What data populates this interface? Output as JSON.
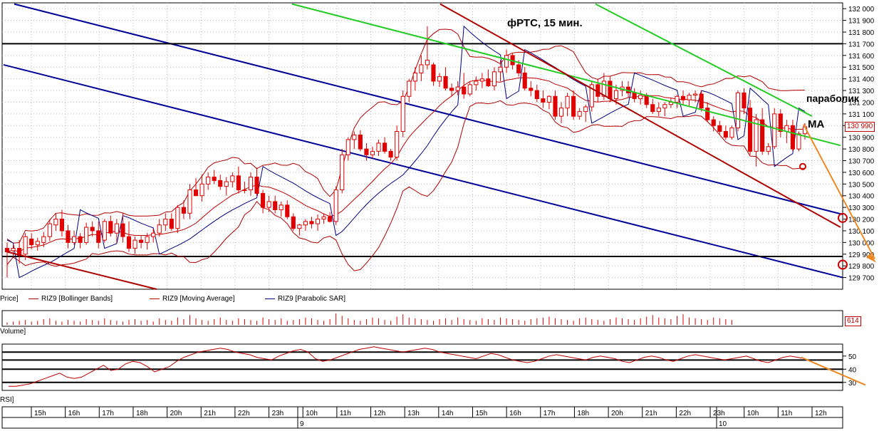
{
  "annotations": {
    "title": "фРТС,  15 мин.",
    "parabolic": "параболик",
    "ma": "MA"
  },
  "legend": {
    "price": "Price]",
    "bollinger": "RIZ9 [Bollinger Bands]",
    "moving_average": "RIZ9 [Moving Average]",
    "parabolic_sar": "RIZ9 [Parabolic SAR]"
  },
  "panes": {
    "volume_label": "Volume]",
    "rsi_label": "RSI]",
    "volume_last": "614",
    "last_price": "130 990"
  },
  "colors": {
    "bull_candle": "#ffffff",
    "bear_candle": "#e00000",
    "bollinger": "#b00000",
    "moving_average": "#c00000",
    "parabolic_sar": "#000080",
    "blue_channel": "#000099",
    "green_trend": "#22cc22",
    "red_trend": "#b00000",
    "orange_projection": "#ee8822",
    "level_line": "#000000"
  },
  "chart_data": {
    "type": "candlestick",
    "price_axis": {
      "ticks": [
        "132 000",
        "131 900",
        "131 800",
        "131 700",
        "131 600",
        "131 500",
        "131 400",
        "131 300",
        "131 200",
        "131 100",
        "131 000",
        "130 900",
        "130 800",
        "130 700",
        "130 600",
        "130 500",
        "130 400",
        "130 300",
        "130 200",
        "130 100",
        "130 000",
        "129 900",
        "129 800",
        "129 700"
      ],
      "range": [
        129600,
        132050
      ]
    },
    "rsi_axis": {
      "ticks": [
        "50",
        "40",
        "30"
      ],
      "range": [
        25,
        58
      ],
      "levels": [
        30,
        40,
        47,
        53
      ]
    },
    "time_axis": {
      "hours": [
        "15h",
        "16h",
        "17h",
        "18h",
        "20h",
        "21h",
        "22h",
        "23h",
        "10h",
        "11h",
        "12h",
        "13h",
        "14h",
        "15h",
        "16h",
        "17h",
        "18h",
        "20h",
        "21h",
        "22h",
        "23h",
        "10h",
        "11h",
        "12h"
      ],
      "days": [
        "9",
        "10"
      ]
    },
    "horizontal_levels": [
      131700,
      129880
    ],
    "candles": [
      [
        129950,
        130000,
        129700,
        129920
      ],
      [
        129930,
        129980,
        129880,
        129950
      ],
      [
        129950,
        130020,
        129820,
        129890
      ],
      [
        129900,
        130080,
        129850,
        130050
      ],
      [
        130030,
        130080,
        129940,
        129980
      ],
      [
        129980,
        130040,
        129930,
        130010
      ],
      [
        130000,
        130090,
        129960,
        130050
      ],
      [
        130050,
        130200,
        130010,
        130160
      ],
      [
        130150,
        130250,
        130100,
        130200
      ],
      [
        130200,
        130280,
        130050,
        130100
      ],
      [
        130100,
        130150,
        129950,
        130000
      ],
      [
        130000,
        130100,
        129980,
        130050
      ],
      [
        130050,
        130080,
        129950,
        130000
      ],
      [
        130000,
        130170,
        129980,
        130130
      ],
      [
        130130,
        130180,
        130050,
        130100
      ],
      [
        130100,
        130180,
        129950,
        130000
      ],
      [
        130020,
        130200,
        130000,
        130180
      ],
      [
        130180,
        130230,
        130050,
        130080
      ],
      [
        130080,
        130200,
        130000,
        130160
      ],
      [
        130160,
        130250,
        130000,
        130050
      ],
      [
        130050,
        130180,
        129920,
        129950
      ],
      [
        129950,
        130050,
        129900,
        130020
      ],
      [
        130020,
        130060,
        129950,
        130000
      ],
      [
        130000,
        130080,
        129940,
        130050
      ],
      [
        130050,
        130120,
        130000,
        130080
      ],
      [
        130080,
        130200,
        130050,
        130150
      ],
      [
        130150,
        130250,
        130100,
        130200
      ],
      [
        130200,
        130250,
        130100,
        130120
      ],
      [
        130120,
        130320,
        130080,
        130300
      ],
      [
        130300,
        130360,
        130200,
        130250
      ],
      [
        130250,
        130500,
        130200,
        130450
      ],
      [
        130450,
        130550,
        130400,
        130400
      ],
      [
        130400,
        130580,
        130350,
        130500
      ],
      [
        130500,
        130600,
        130450,
        130560
      ],
      [
        130560,
        130620,
        130500,
        130530
      ],
      [
        130530,
        130580,
        130450,
        130480
      ],
      [
        130480,
        130560,
        130400,
        130520
      ],
      [
        130520,
        130600,
        130470,
        130570
      ],
      [
        130570,
        130650,
        130420,
        130450
      ],
      [
        130450,
        130520,
        130420,
        130450
      ],
      [
        130450,
        130600,
        130400,
        130560
      ],
      [
        130560,
        130640,
        130400,
        130420
      ],
      [
        130420,
        130450,
        130250,
        130300
      ],
      [
        130300,
        130400,
        130260,
        130350
      ],
      [
        130350,
        130400,
        130250,
        130280
      ],
      [
        130280,
        130350,
        130220,
        130320
      ],
      [
        130320,
        130360,
        130200,
        130220
      ],
      [
        130220,
        130250,
        130100,
        130120
      ],
      [
        130120,
        130160,
        130060,
        130150
      ],
      [
        130150,
        130200,
        130100,
        130180
      ],
      [
        130180,
        130220,
        130120,
        130160
      ],
      [
        130160,
        130240,
        130100,
        130200
      ],
      [
        130200,
        130250,
        130160,
        130220
      ],
      [
        130220,
        130260,
        130170,
        130180
      ],
      [
        130180,
        130480,
        130150,
        130450
      ],
      [
        130450,
        130800,
        130420,
        130750
      ],
      [
        130750,
        130900,
        130700,
        130880
      ],
      [
        130880,
        130950,
        130800,
        130920
      ],
      [
        130920,
        130960,
        130780,
        130800
      ],
      [
        130800,
        130850,
        130700,
        130750
      ],
      [
        130750,
        130820,
        130720,
        130780
      ],
      [
        130780,
        130880,
        130740,
        130850
      ],
      [
        130850,
        130900,
        130760,
        130780
      ],
      [
        130780,
        130800,
        130700,
        130730
      ],
      [
        130730,
        131000,
        130700,
        130950
      ],
      [
        130950,
        131300,
        130900,
        131250
      ],
      [
        131250,
        131400,
        131200,
        131380
      ],
      [
        131380,
        131500,
        131300,
        131450
      ],
      [
        131450,
        131600,
        131380,
        131520
      ],
      [
        131520,
        131850,
        131480,
        131560
      ],
      [
        131520,
        131540,
        131340,
        131380
      ],
      [
        131380,
        131450,
        131330,
        131420
      ],
      [
        131420,
        131500,
        131300,
        131320
      ],
      [
        131320,
        131360,
        131250,
        131300
      ],
      [
        131300,
        131380,
        131260,
        131330
      ],
      [
        131330,
        131450,
        131230,
        131270
      ],
      [
        131270,
        131380,
        131250,
        131350
      ],
      [
        131350,
        131420,
        131300,
        131380
      ],
      [
        131380,
        131450,
        131320,
        131400
      ],
      [
        131400,
        131480,
        131330,
        131340
      ],
      [
        131340,
        131500,
        131300,
        131460
      ],
      [
        131460,
        131560,
        131380,
        131500
      ],
      [
        131500,
        131650,
        131450,
        131600
      ],
      [
        131600,
        131620,
        131480,
        131520
      ],
      [
        131520,
        131560,
        131420,
        131450
      ],
      [
        131450,
        131500,
        131300,
        131320
      ],
      [
        131320,
        131380,
        131250,
        131300
      ],
      [
        131300,
        131350,
        131200,
        131230
      ],
      [
        131230,
        131300,
        131150,
        131200
      ],
      [
        131200,
        131260,
        131140,
        131250
      ],
      [
        131250,
        131300,
        131050,
        131080
      ],
      [
        131080,
        131200,
        131020,
        131150
      ],
      [
        131150,
        131280,
        131080,
        131250
      ],
      [
        131250,
        131300,
        131050,
        131080
      ],
      [
        131080,
        131150,
        131050,
        131120
      ],
      [
        131120,
        131180,
        131030,
        131160
      ],
      [
        131160,
        131380,
        131120,
        131350
      ],
      [
        131350,
        131400,
        131200,
        131250
      ],
      [
        131250,
        131450,
        131220,
        131380
      ],
      [
        131380,
        131420,
        131200,
        131230
      ],
      [
        131230,
        131350,
        131180,
        131300
      ],
      [
        131300,
        131380,
        131250,
        131330
      ],
      [
        131330,
        131380,
        131240,
        131280
      ],
      [
        131280,
        131320,
        131200,
        131230
      ],
      [
        131230,
        131300,
        131180,
        131260
      ],
      [
        131260,
        131280,
        131150,
        131180
      ],
      [
        131180,
        131230,
        131100,
        131120
      ],
      [
        131120,
        131200,
        131080,
        131150
      ],
      [
        131150,
        131200,
        131080,
        131180
      ],
      [
        131180,
        131240,
        131150,
        131200
      ],
      [
        131200,
        131260,
        131150,
        131250
      ],
      [
        131250,
        131300,
        131180,
        131220
      ],
      [
        131220,
        131280,
        131170,
        131260
      ],
      [
        131260,
        131300,
        131200,
        131270
      ],
      [
        131270,
        131300,
        131120,
        131150
      ],
      [
        131150,
        131200,
        131030,
        131050
      ],
      [
        131050,
        131080,
        130950,
        131000
      ],
      [
        131000,
        131040,
        130920,
        130950
      ],
      [
        130950,
        131000,
        130880,
        130900
      ],
      [
        130900,
        131000,
        130880,
        130980
      ],
      [
        130980,
        131300,
        130950,
        131280
      ],
      [
        131280,
        131320,
        131100,
        131150
      ],
      [
        131150,
        131220,
        130750,
        130780
      ],
      [
        130780,
        131100,
        130650,
        131050
      ],
      [
        131050,
        131150,
        130750,
        130780
      ],
      [
        130780,
        130850,
        130750,
        130820
      ],
      [
        130820,
        131150,
        130800,
        131100
      ],
      [
        131100,
        131140,
        130900,
        130950
      ],
      [
        130950,
        131050,
        130850,
        131000
      ],
      [
        131000,
        131050,
        130780,
        130800
      ],
      [
        130800,
        130950,
        130780,
        130930
      ],
      [
        130930,
        131020,
        130880,
        130990
      ]
    ],
    "rsi": [
      27,
      27,
      28,
      29,
      31,
      33,
      35,
      37,
      34,
      33,
      34,
      37,
      40,
      43,
      39,
      40,
      44,
      46,
      45,
      42,
      38,
      40,
      42,
      46,
      49,
      51,
      53,
      54,
      55,
      56,
      55,
      53,
      52,
      51,
      49,
      48,
      47,
      50,
      52,
      54,
      55,
      53,
      48,
      46,
      47,
      49,
      51,
      53,
      55,
      56,
      57,
      56,
      55,
      54,
      53,
      54,
      55,
      56,
      55,
      53,
      52,
      51,
      50,
      49,
      48,
      50,
      52,
      51,
      49,
      47,
      46,
      45,
      46,
      48,
      50,
      51,
      50,
      49,
      48,
      47,
      49,
      50,
      49,
      48,
      46,
      45,
      47,
      49,
      50,
      49,
      47,
      46,
      48,
      50,
      51,
      50,
      49,
      48,
      47,
      48,
      49,
      50,
      48,
      46,
      45,
      47,
      49,
      50,
      49,
      48
    ],
    "volume": [
      3,
      4,
      5,
      6,
      4,
      5,
      7,
      8,
      5,
      4,
      6,
      5,
      4,
      7,
      6,
      5,
      8,
      6,
      5,
      4,
      6,
      7,
      5,
      6,
      4,
      8,
      6,
      5,
      9,
      7,
      12,
      8,
      6,
      5,
      7,
      9,
      6,
      5,
      8,
      7,
      6,
      5,
      9,
      7,
      6,
      8,
      5,
      6,
      7,
      9,
      8,
      6,
      5,
      7,
      14,
      11,
      8,
      6,
      5,
      7,
      9,
      8,
      6,
      5,
      10,
      13,
      9,
      8,
      7,
      6,
      5,
      7,
      8,
      6,
      9,
      7,
      6,
      5,
      8,
      7,
      6,
      9,
      8,
      7,
      6,
      5,
      7,
      8,
      9,
      10,
      8,
      7,
      6,
      5,
      8,
      9,
      7,
      6,
      5,
      7,
      9,
      8,
      7,
      6,
      8,
      10,
      12,
      9,
      8,
      7,
      11,
      13,
      9,
      8,
      7,
      6,
      9,
      8,
      7,
      6
    ]
  }
}
